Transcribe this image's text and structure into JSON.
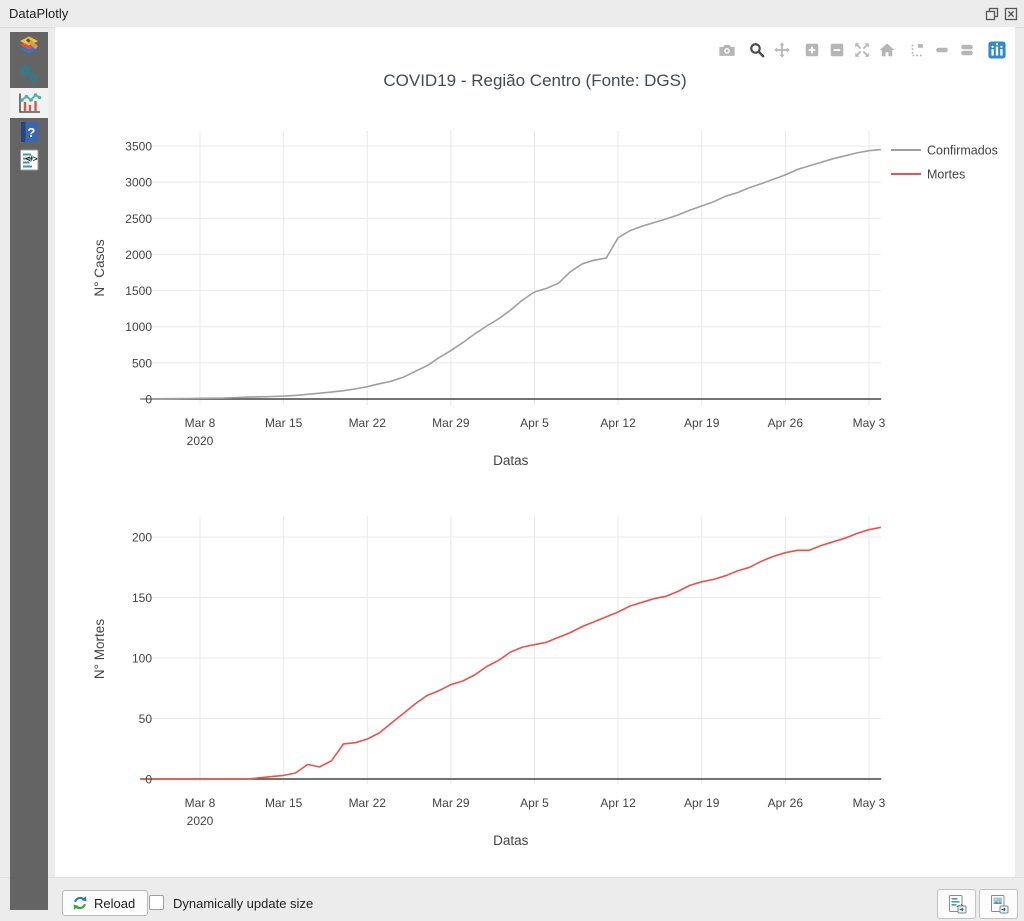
{
  "window": {
    "title": "DataPlotly"
  },
  "titlebar_controls": {
    "icons": [
      "float-window",
      "close-window"
    ]
  },
  "sidebar": {
    "active_tab_index": 2,
    "tabs": [
      {
        "icon": "symbology-brush"
      },
      {
        "icon": "settings-gears"
      },
      {
        "icon": "plot-chart"
      },
      {
        "icon": "help-book"
      },
      {
        "icon": "code-page"
      }
    ]
  },
  "modebar": {
    "active": "zoom",
    "icons": [
      "camera",
      "zoom",
      "pan",
      "zoom-in",
      "zoom-out",
      "autoscale",
      "home",
      "spikelines",
      "hover-closest",
      "hover-compare",
      "plotly-logo"
    ],
    "inactive_color": "#b6b6b6",
    "active_color": "#4d4d4d",
    "logo_color": "#2f89cc"
  },
  "legend": {
    "entries": [
      {
        "label": "Confirmados",
        "color": "#a0a0a0"
      },
      {
        "label": "Mortes",
        "color": "#e8534e"
      }
    ]
  },
  "chart_data": [
    {
      "type": "line",
      "title": "COVID19 - Região Centro (Fonte: DGS)",
      "series_name": "Confirmados",
      "color": "#a0a0a0",
      "xlabel": "Datas",
      "ylabel": "N° Casos",
      "x_start_date": "2020-03-03",
      "x_ticks": [
        {
          "label": "Mar 8",
          "sublabel": "2020",
          "day": 5
        },
        {
          "label": "Mar 15",
          "day": 12
        },
        {
          "label": "Mar 22",
          "day": 19
        },
        {
          "label": "Mar 29",
          "day": 26
        },
        {
          "label": "Apr 5",
          "day": 33
        },
        {
          "label": "Apr 12",
          "day": 40
        },
        {
          "label": "Apr 19",
          "day": 47
        },
        {
          "label": "Apr 26",
          "day": 54
        },
        {
          "label": "May 3",
          "day": 61
        }
      ],
      "y_ticks": [
        0,
        500,
        1000,
        1500,
        2000,
        2500,
        3000,
        3500
      ],
      "ylim": [
        0,
        3700
      ],
      "values": [
        2,
        3,
        4,
        6,
        7,
        9,
        11,
        13,
        18,
        26,
        30,
        34,
        40,
        50,
        65,
        80,
        95,
        115,
        140,
        170,
        210,
        245,
        300,
        380,
        460,
        570,
        670,
        780,
        900,
        1010,
        1110,
        1230,
        1370,
        1480,
        1530,
        1600,
        1760,
        1870,
        1920,
        1950,
        2230,
        2330,
        2390,
        2440,
        2490,
        2545,
        2610,
        2670,
        2730,
        2805,
        2855,
        2925,
        2980,
        3040,
        3100,
        3175,
        3225,
        3275,
        3325,
        3365,
        3405,
        3435,
        3450
      ]
    },
    {
      "type": "line",
      "series_name": "Mortes",
      "color": "#e8534e",
      "xlabel": "Datas",
      "ylabel": "N° Mortes",
      "x_start_date": "2020-03-03",
      "x_ticks": [
        {
          "label": "Mar 8",
          "sublabel": "2020",
          "day": 5
        },
        {
          "label": "Mar 15",
          "day": 12
        },
        {
          "label": "Mar 22",
          "day": 19
        },
        {
          "label": "Mar 29",
          "day": 26
        },
        {
          "label": "Apr 5",
          "day": 33
        },
        {
          "label": "Apr 12",
          "day": 40
        },
        {
          "label": "Apr 19",
          "day": 47
        },
        {
          "label": "Apr 26",
          "day": 54
        },
        {
          "label": "May 3",
          "day": 61
        }
      ],
      "y_ticks": [
        0,
        50,
        100,
        150,
        200
      ],
      "ylim": [
        0,
        217
      ],
      "values": [
        0,
        0,
        0,
        0,
        0,
        0,
        0,
        0,
        0,
        0,
        1,
        2,
        3,
        5,
        12,
        10,
        15,
        29,
        30,
        33,
        38,
        46,
        54,
        62,
        69,
        73,
        78,
        81,
        86,
        93,
        98,
        105,
        109,
        111,
        113,
        117,
        121,
        126,
        130,
        134,
        138,
        143,
        146,
        149,
        151,
        155,
        160,
        163,
        165,
        168,
        172,
        175,
        180,
        184,
        187,
        189,
        189,
        193,
        196,
        199,
        203,
        206,
        208
      ]
    }
  ],
  "footer": {
    "reload_label": "Reload",
    "checkbox_label": "Dynamically update size",
    "checkbox_checked": false,
    "export_icons": [
      "export-html",
      "export-image"
    ]
  }
}
